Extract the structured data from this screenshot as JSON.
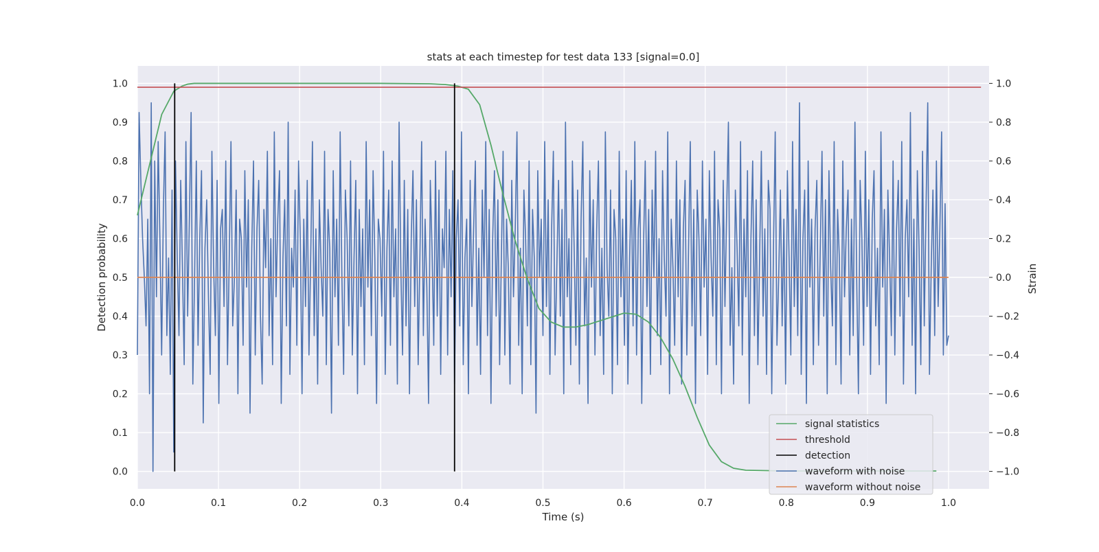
{
  "chart_data": {
    "type": "line",
    "title": "stats at each timestep for test data 133 [signal=0.0]",
    "xlabel": "Time (s)",
    "ylabel": "Detection probability",
    "y2label": "Strain",
    "xlim": [
      0.0,
      1.05
    ],
    "ylim": [
      -0.045,
      1.045
    ],
    "y2lim": [
      -1.09,
      1.09
    ],
    "x_ticks": [
      "0.0",
      "0.1",
      "0.2",
      "0.3",
      "0.4",
      "0.5",
      "0.6",
      "0.7",
      "0.8",
      "0.9",
      "1.0"
    ],
    "y_ticks": [
      "0.0",
      "0.1",
      "0.2",
      "0.3",
      "0.4",
      "0.5",
      "0.6",
      "0.7",
      "0.8",
      "0.9",
      "1.0"
    ],
    "y2_ticks": [
      "−1.0",
      "−0.8",
      "−0.6",
      "−0.4",
      "−0.2",
      "0.0",
      "0.2",
      "0.4",
      "0.6",
      "0.8",
      "1.0"
    ],
    "grid": true,
    "legend_position": "lower-right",
    "colors": {
      "signal_statistics": "#55a868",
      "threshold": "#c44e52",
      "detection": "#000000",
      "waveform_with_noise": "#4c72b0",
      "waveform_without_noise": "#dd8452",
      "plot_background": "#eaeaf2"
    },
    "series": [
      {
        "name": "signal statistics",
        "axis": "left",
        "x": [
          0.0,
          0.015,
          0.03,
          0.045,
          0.055,
          0.062,
          0.07,
          0.1,
          0.2,
          0.3,
          0.36,
          0.38,
          0.395,
          0.408,
          0.422,
          0.436,
          0.45,
          0.465,
          0.48,
          0.495,
          0.51,
          0.525,
          0.54,
          0.555,
          0.57,
          0.585,
          0.6,
          0.615,
          0.63,
          0.645,
          0.66,
          0.675,
          0.69,
          0.705,
          0.72,
          0.735,
          0.75,
          0.8,
          0.85,
          0.9,
          0.95,
          0.985
        ],
        "values": [
          0.66,
          0.79,
          0.92,
          0.98,
          0.993,
          0.998,
          1.0,
          1.0,
          1.0,
          1.0,
          0.999,
          0.997,
          0.993,
          0.985,
          0.945,
          0.84,
          0.72,
          0.6,
          0.5,
          0.42,
          0.385,
          0.372,
          0.372,
          0.378,
          0.388,
          0.398,
          0.408,
          0.405,
          0.385,
          0.345,
          0.29,
          0.22,
          0.14,
          0.068,
          0.025,
          0.008,
          0.003,
          0.001,
          0.001,
          0.001,
          0.001,
          0.001
        ]
      },
      {
        "name": "threshold",
        "axis": "left",
        "x": [
          0.0,
          1.04
        ],
        "values": [
          0.99,
          0.99
        ]
      },
      {
        "name": "detection",
        "axis": "left",
        "x_positions": [
          0.046,
          0.391
        ],
        "range": [
          0.0,
          1.0
        ]
      },
      {
        "name": "waveform with noise",
        "axis": "right",
        "x_range": [
          0.0,
          1.0
        ],
        "values": [
          -0.4,
          0.85,
          0.5,
          0.2,
          0.0,
          -0.25,
          0.3,
          -0.6,
          0.9,
          -1.0,
          0.6,
          -0.1,
          0.7,
          0.2,
          -0.4,
          0.35,
          0.75,
          -0.3,
          0.1,
          -0.5,
          0.45,
          -0.9,
          0.6,
          0.1,
          -0.3,
          0.5,
          0.05,
          -0.45,
          0.7,
          -0.2,
          0.3,
          0.85,
          -0.55,
          0.0,
          0.6,
          -0.35,
          0.2,
          0.55,
          -0.75,
          0.15,
          0.4,
          -0.1,
          -0.5,
          0.65,
          0.05,
          -0.3,
          0.5,
          -0.65,
          0.25,
          0.35,
          -0.15,
          0.6,
          -0.45,
          0.1,
          0.7,
          -0.25,
          0.0,
          0.45,
          -0.6,
          0.3,
          0.2,
          -0.35,
          0.55,
          -0.05,
          0.4,
          -0.7,
          0.15,
          0.6,
          -0.4,
          0.25,
          0.5,
          -0.2,
          -0.55,
          0.35,
          0.05,
          0.65,
          -0.3,
          0.2,
          -0.45,
          0.75,
          -0.1,
          0.3,
          0.55,
          -0.65,
          0.1,
          0.4,
          -0.25,
          0.8,
          -0.5,
          0.15,
          -0.05,
          0.45,
          -0.35,
          0.6,
          0.2,
          -0.6,
          0.3,
          -0.15,
          0.5,
          -0.4,
          0.1,
          0.7,
          -0.3,
          0.25,
          -0.55,
          0.4,
          0.05,
          -0.2,
          0.65,
          -0.45,
          0.35,
          0.15,
          -0.7,
          0.55,
          -0.1,
          0.3,
          -0.35,
          0.75,
          0.0,
          -0.5,
          0.45,
          0.2,
          -0.25,
          0.6,
          -0.4,
          0.1,
          0.5,
          -0.6,
          0.35,
          -0.15,
          0.25,
          -0.45,
          0.7,
          -0.05,
          0.4,
          -0.3,
          0.55,
          0.1,
          -0.65,
          0.3,
          0.2,
          -0.2,
          0.65,
          -0.5,
          0.15,
          0.45,
          -0.35,
          0.6,
          -0.1,
          0.25,
          -0.55,
          0.8,
          0.05,
          -0.4,
          0.5,
          -0.25,
          0.35,
          -0.6,
          0.2,
          0.55,
          -0.15,
          0.4,
          -0.45,
          0.1,
          0.7,
          -0.3,
          0.3,
          -0.05,
          -0.65,
          0.5,
          0.15,
          -0.35,
          0.6,
          -0.2,
          0.45,
          -0.5,
          0.25,
          0.05,
          0.65,
          -0.4,
          0.35,
          -0.1,
          0.55,
          -0.55,
          0.2,
          0.4,
          -0.25,
          0.75,
          -0.45,
          0.1,
          0.3,
          -0.6,
          0.5,
          -0.15,
          0.25,
          0.6,
          -0.35,
          0.15,
          -0.5,
          0.45,
          0.0,
          0.7,
          -0.3,
          0.35,
          -0.65,
          0.2,
          0.55,
          -0.2,
          0.4,
          -0.45,
          0.1,
          0.65,
          -0.4,
          0.3,
          0.05,
          -0.55,
          0.5,
          -0.1,
          0.25,
          0.75,
          -0.35,
          0.15,
          -0.6,
          0.45,
          0.2,
          -0.25,
          0.6,
          -0.45,
          0.35,
          0.1,
          -0.7,
          0.55,
          0.0,
          0.3,
          -0.3,
          0.7,
          -0.15,
          0.4,
          -0.5,
          0.25,
          0.65,
          -0.4,
          0.05,
          0.5,
          -0.2,
          0.35,
          -0.6,
          0.8,
          -0.1,
          0.2,
          -0.45,
          0.6,
          0.15,
          -0.35,
          0.45,
          -0.55,
          0.3,
          0.7,
          -0.25,
          0.1,
          -0.65,
          0.55,
          -0.05,
          0.4,
          -0.4,
          0.25,
          0.6,
          -0.3,
          0.15,
          -0.5,
          0.75,
          0.05,
          -0.2,
          0.45,
          -0.6,
          0.35,
          0.2,
          -0.45,
          0.65,
          -0.1,
          0.3,
          -0.35,
          0.55,
          -0.55,
          0.1,
          0.5,
          -0.25,
          0.7,
          -0.4,
          0.25,
          0.4,
          -0.65,
          0.15,
          0.6,
          -0.15,
          0.35,
          -0.5,
          0.45,
          0.0,
          0.65,
          -0.3,
          0.2,
          -0.45,
          0.55,
          0.1,
          -0.2,
          0.75,
          -0.6,
          0.3,
          0.05,
          -0.35,
          0.6,
          -0.1,
          0.4,
          -0.55,
          0.25,
          0.5,
          -0.4,
          0.15,
          0.7,
          -0.25,
          0.35,
          -0.65,
          0.45,
          0.2,
          -0.3,
          0.6,
          -0.05,
          0.3,
          -0.5,
          0.55,
          0.1,
          -0.2,
          0.65,
          -0.45,
          0.4,
          0.25,
          -0.6,
          0.5,
          -0.15,
          0.35,
          0.8,
          -0.35,
          0.05,
          -0.55,
          0.45,
          0.15,
          -0.25,
          0.7,
          -0.4,
          0.3,
          -0.1,
          0.55,
          -0.65,
          0.2,
          0.6,
          -0.3,
          0.4,
          -0.45,
          0.1,
          0.65,
          -0.2,
          0.25,
          -0.5,
          0.5,
          0.35,
          -0.6,
          0.15,
          0.75,
          -0.35,
          0.0,
          0.45,
          -0.25,
          0.3,
          -0.55,
          0.55,
          0.1,
          -0.4,
          0.7,
          -0.15,
          0.35,
          -0.3,
          0.9,
          -0.5,
          0.2,
          0.45,
          -0.65,
          0.6,
          -0.05,
          0.3,
          -0.45,
          0.25,
          0.5,
          -0.35,
          0.15,
          0.65,
          -0.2,
          0.4,
          -0.6,
          0.55,
          0.05,
          -0.25,
          0.7,
          -0.45,
          0.35,
          0.1,
          -0.55,
          0.6,
          -0.1,
          0.25,
          0.45,
          -0.4,
          0.3,
          -0.3,
          0.8,
          0.0,
          -0.6,
          0.5,
          0.2,
          -0.35,
          0.65,
          -0.15,
          0.4,
          -0.5,
          0.3,
          0.55,
          -0.25,
          0.15,
          -0.45,
          0.75,
          -0.05,
          0.35,
          -0.65,
          0.45,
          0.1,
          -0.3,
          0.6,
          -0.4,
          0.25,
          0.5,
          -0.2,
          0.7,
          -0.55,
          0.2,
          0.4,
          -0.1,
          0.85,
          -0.35,
          0.3,
          -0.6,
          0.55,
          0.15,
          -0.45,
          0.65,
          -0.25,
          0.35,
          0.9,
          -0.5,
          0.05,
          0.45,
          -0.3,
          0.6,
          -0.15,
          0.25,
          0.75,
          -0.4,
          0.38,
          -0.35,
          -0.3
        ]
      },
      {
        "name": "waveform without noise",
        "axis": "right",
        "x": [
          0.0,
          1.0
        ],
        "values": [
          0.0,
          0.0
        ]
      }
    ]
  }
}
